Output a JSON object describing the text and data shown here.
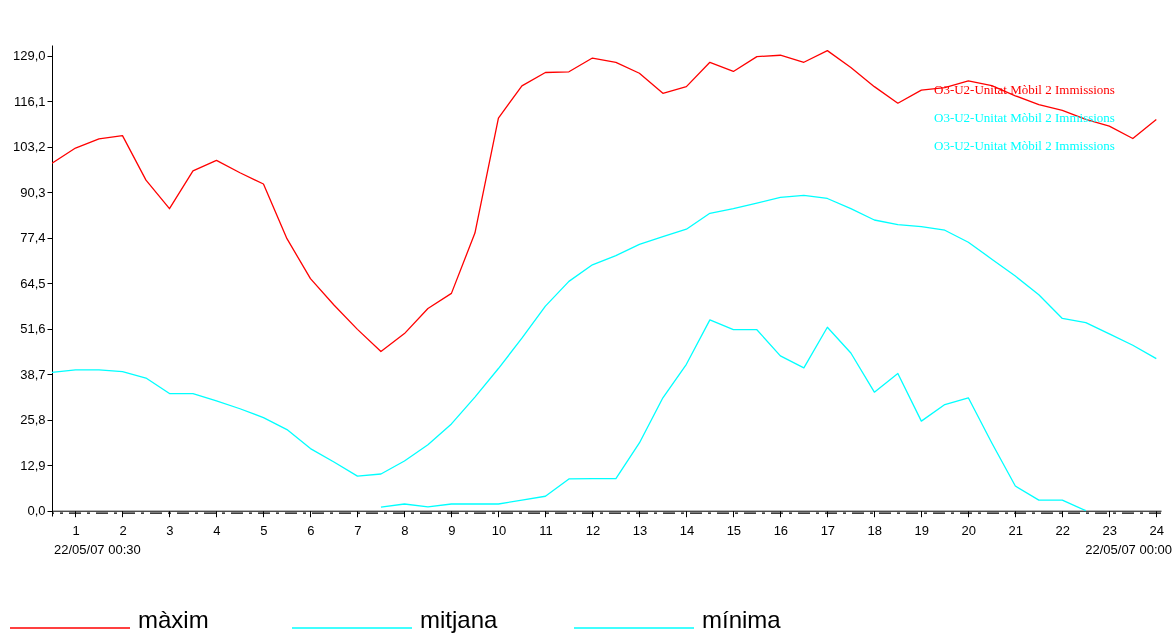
{
  "chart_data": {
    "type": "line",
    "x": [
      0.5,
      1,
      1.5,
      2,
      2.5,
      3,
      3.5,
      4,
      4.5,
      5,
      5.5,
      6,
      6.5,
      7,
      7.5,
      8,
      8.5,
      9,
      9.5,
      10,
      10.5,
      11,
      11.5,
      12,
      12.5,
      13,
      13.5,
      14,
      14.5,
      15,
      15.5,
      16,
      16.5,
      17,
      17.5,
      18,
      18.5,
      19,
      19.5,
      20,
      20.5,
      21,
      21.5,
      22,
      22.5,
      23,
      23.5,
      24
    ],
    "series": [
      {
        "name": "màxim",
        "color": "#ff0000",
        "values": [
          98.5,
          102.8,
          105.4,
          106.3,
          93.7,
          85.6,
          96.3,
          99.3,
          95.8,
          92.6,
          77.1,
          65.8,
          58.3,
          51.4,
          45.1,
          50.2,
          57.3,
          61.6,
          78.7,
          111.3,
          120.4,
          124.2,
          124.4,
          128.3,
          127.1,
          124.0,
          118.3,
          120.2,
          127.1,
          124.5,
          128.7,
          129.1,
          127.1,
          130.4,
          125.6,
          120.2,
          115.5,
          119.2,
          119.9,
          121.8,
          120.5,
          117.6,
          115.1,
          113.5,
          110.9,
          109.0,
          105.5,
          110.9
        ]
      },
      {
        "name": "mitjana",
        "color": "#00ffff",
        "values": [
          39.2,
          39.9,
          39.9,
          39.4,
          37.6,
          33.2,
          33.2,
          31.1,
          28.9,
          26.4,
          23.0,
          17.6,
          13.8,
          9.8,
          10.4,
          14.1,
          18.7,
          24.6,
          32.2,
          40.3,
          48.9,
          58.0,
          65.0,
          69.7,
          72.3,
          75.5,
          77.7,
          79.8,
          84.3,
          85.6,
          87.2,
          88.8,
          89.4,
          88.5,
          85.6,
          82.4,
          81.1,
          80.5,
          79.5,
          76.1,
          71.3,
          66.5,
          61.2,
          54.5,
          53.3,
          50.1,
          46.9,
          43.1
        ]
      },
      {
        "name": "mínima",
        "color": "#00ffff",
        "values": [
          null,
          null,
          null,
          null,
          null,
          null,
          null,
          null,
          null,
          null,
          null,
          null,
          null,
          null,
          1.0,
          1.9,
          1.1,
          1.9,
          1.9,
          1.9,
          3.0,
          4.1,
          9.0,
          9.1,
          9.1,
          19.2,
          32.0,
          41.5,
          54.1,
          51.3,
          51.3,
          43.9,
          40.5,
          52.0,
          44.7,
          33.6,
          38.9,
          25.4,
          30.1,
          32.0,
          19.2,
          7.0,
          3.0,
          3.0,
          0.0,
          null,
          null,
          null
        ]
      }
    ],
    "xlim": [
      0.5,
      24.1
    ],
    "xticks": [
      1,
      2,
      3,
      4,
      5,
      6,
      7,
      8,
      9,
      10,
      11,
      12,
      13,
      14,
      15,
      16,
      17,
      18,
      19,
      20,
      21,
      22,
      23,
      24
    ],
    "ylim": [
      -1.5,
      132
    ],
    "yticks": [
      {
        "value": 0,
        "label": "0,0"
      },
      {
        "value": 12.9,
        "label": "12,9"
      },
      {
        "value": 25.8,
        "label": "25,8"
      },
      {
        "value": 38.7,
        "label": "38,7"
      },
      {
        "value": 51.6,
        "label": "51,6"
      },
      {
        "value": 64.5,
        "label": "64,5"
      },
      {
        "value": 77.4,
        "label": "77,4"
      },
      {
        "value": 90.3,
        "label": "90,3"
      },
      {
        "value": 103.2,
        "label": "103,2"
      },
      {
        "value": 116.1,
        "label": "116,1"
      },
      {
        "value": 129.0,
        "label": "129,0"
      }
    ],
    "ref_lines": [
      {
        "axis": "y",
        "value": -0.7,
        "line_style": "dashed",
        "color": "#000000"
      }
    ],
    "annotations": [
      "O3-U2-Unitat Mòbil 2 Immissions",
      "O3-U2-Unitat Mòbil 2 Immissions",
      "O3-U2-Unitat Mòbil 2 Immissions",
      "22/05/07 00:30",
      "22/05/07 00:00"
    ],
    "grid": false,
    "legend": "bottom"
  }
}
